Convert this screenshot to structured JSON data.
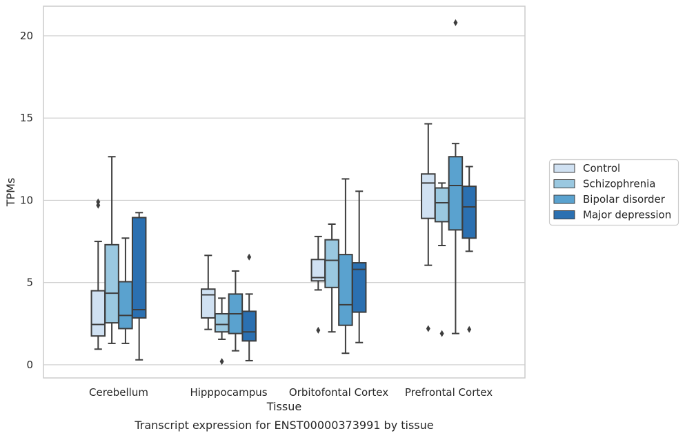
{
  "chart_data": {
    "type": "box",
    "caption": "Transcript expression for ENST00000373991 by tissue",
    "xlabel": "Tissue",
    "ylabel": "TPMs",
    "ylim": [
      -0.8,
      21.8
    ],
    "yticks": [
      0,
      5,
      10,
      15,
      20
    ],
    "grid": "horizontal",
    "legend_position": "right",
    "categories": [
      "Cerebellum",
      "Hipppocampus",
      "Orbitofontal Cortex",
      "Prefrontal Cortex"
    ],
    "series": [
      {
        "name": "Control",
        "color": "#d0e1f2",
        "boxes": [
          {
            "whislo": 0.95,
            "q1": 1.75,
            "med": 2.45,
            "q3": 4.5,
            "whishi": 7.5,
            "fliers": [
              9.7,
              9.9
            ]
          },
          {
            "whislo": 2.15,
            "q1": 2.85,
            "med": 4.25,
            "q3": 4.6,
            "whishi": 6.65,
            "fliers": []
          },
          {
            "whislo": 4.55,
            "q1": 5.1,
            "med": 5.3,
            "q3": 6.4,
            "whishi": 7.8,
            "fliers": [
              2.1
            ]
          },
          {
            "whislo": 6.05,
            "q1": 8.9,
            "med": 11.05,
            "q3": 11.6,
            "whishi": 14.65,
            "fliers": [
              2.2
            ]
          }
        ]
      },
      {
        "name": "Schizophrenia",
        "color": "#9ac8e0",
        "boxes": [
          {
            "whislo": 1.3,
            "q1": 2.55,
            "med": 4.35,
            "q3": 7.3,
            "whishi": 12.65,
            "fliers": []
          },
          {
            "whislo": 1.55,
            "q1": 2.0,
            "med": 2.45,
            "q3": 3.1,
            "whishi": 4.05,
            "fliers": [
              0.2
            ]
          },
          {
            "whislo": 2.0,
            "q1": 4.7,
            "med": 6.35,
            "q3": 7.6,
            "whishi": 8.55,
            "fliers": []
          },
          {
            "whislo": 7.25,
            "q1": 8.7,
            "med": 9.85,
            "q3": 10.75,
            "whishi": 11.05,
            "fliers": [
              1.9
            ]
          }
        ]
      },
      {
        "name": "Bipolar disorder",
        "color": "#5aa2cf",
        "boxes": [
          {
            "whislo": 1.3,
            "q1": 2.2,
            "med": 3.0,
            "q3": 5.05,
            "whishi": 7.7,
            "fliers": []
          },
          {
            "whislo": 0.85,
            "q1": 1.9,
            "med": 3.1,
            "q3": 4.3,
            "whishi": 5.7,
            "fliers": []
          },
          {
            "whislo": 0.7,
            "q1": 2.4,
            "med": 3.65,
            "q3": 6.7,
            "whishi": 11.3,
            "fliers": []
          },
          {
            "whislo": 1.9,
            "q1": 8.2,
            "med": 10.9,
            "q3": 12.65,
            "whishi": 13.45,
            "fliers": [
              20.8
            ]
          }
        ]
      },
      {
        "name": "Major depression",
        "color": "#2b70b1",
        "boxes": [
          {
            "whislo": 0.3,
            "q1": 2.85,
            "med": 3.35,
            "q3": 8.95,
            "whishi": 9.25,
            "fliers": []
          },
          {
            "whislo": 0.25,
            "q1": 1.45,
            "med": 2.0,
            "q3": 3.25,
            "whishi": 4.3,
            "fliers": [
              6.55
            ]
          },
          {
            "whislo": 1.35,
            "q1": 3.2,
            "med": 5.8,
            "q3": 6.2,
            "whishi": 10.55,
            "fliers": []
          },
          {
            "whislo": 6.9,
            "q1": 7.7,
            "med": 9.6,
            "q3": 10.85,
            "whishi": 12.05,
            "fliers": [
              2.15
            ]
          }
        ]
      }
    ]
  }
}
